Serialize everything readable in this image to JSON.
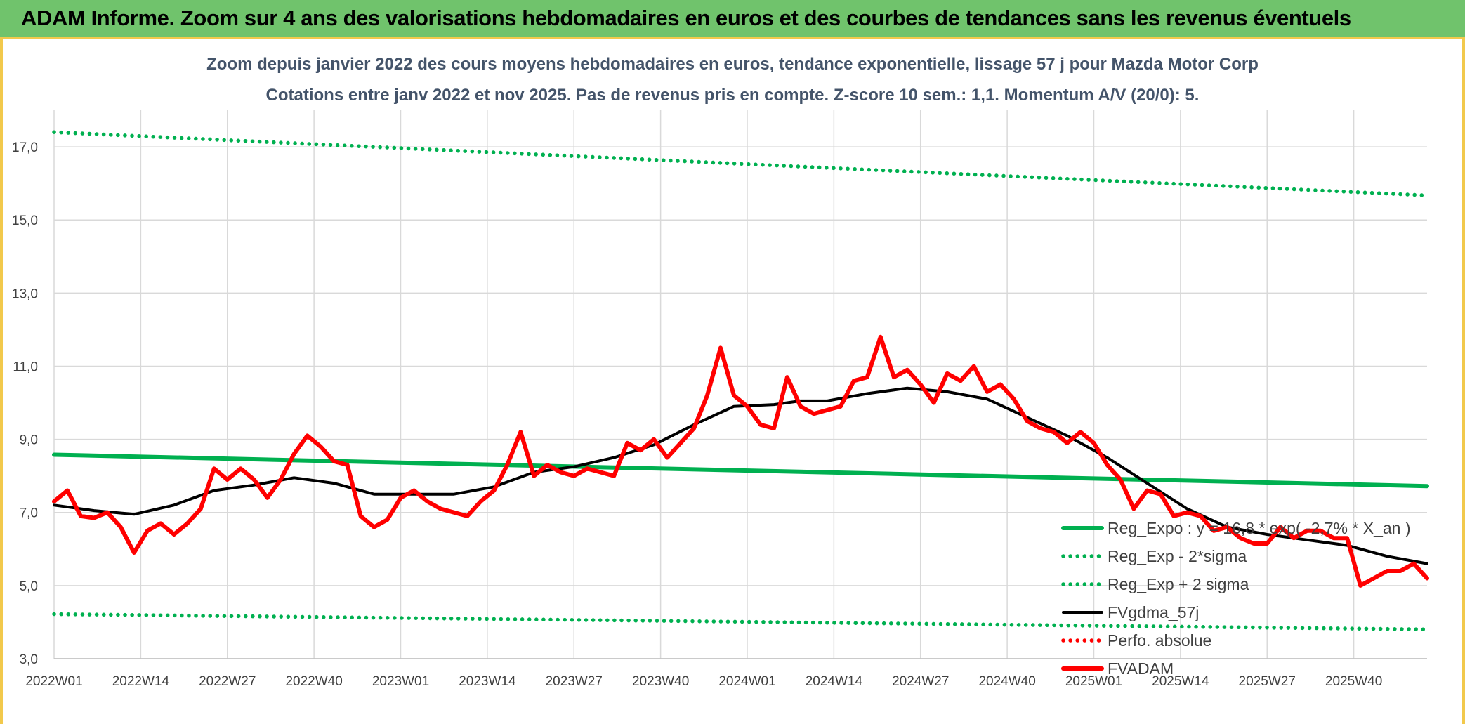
{
  "banner": {
    "title": "ADAM Informe. Zoom sur 4 ans des valorisations hebdomadaires en euros et des courbes de tendances sans les revenus éventuels"
  },
  "colors": {
    "banner_bg": "#70c36c",
    "frame_border": "#f2c94c",
    "trend": "#00b050",
    "price": "#ff0000",
    "smooth": "#000000",
    "grid": "#d9d9d9"
  },
  "chart_data": {
    "type": "line",
    "title": "Zoom depuis janvier 2022 des cours moyens hebdomadaires en euros, tendance exponentielle, lissage 57 j pour Mazda Motor Corp",
    "subtitle": "Cotations entre janv 2022 et nov 2025. Pas de revenus pris en compte. Z-score 10 sem.: 1,1. Momentum A/V (20/0): 5.",
    "ylim": [
      3,
      18
    ],
    "y_ticks": [
      "3,0",
      "5,0",
      "7,0",
      "9,0",
      "11,0",
      "13,0",
      "15,0",
      "17,0"
    ],
    "y_tick_values": [
      3,
      5,
      7,
      9,
      11,
      13,
      15,
      17
    ],
    "x_ticks": [
      "2022W01",
      "2022W14",
      "2022W27",
      "2022W40",
      "2023W01",
      "2023W14",
      "2023W27",
      "2023W40",
      "2024W01",
      "2024W14",
      "2024W27",
      "2024W40",
      "2025W01",
      "2025W14",
      "2025W27",
      "2025W40"
    ],
    "x_tick_indexes": [
      0,
      13,
      26,
      39,
      52,
      65,
      78,
      91,
      104,
      117,
      130,
      143,
      156,
      169,
      182,
      195
    ],
    "n_weeks": 207,
    "grid": true,
    "legend_position": "bottom-right",
    "series": [
      {
        "name": "Reg_Expo : y = 16,8 * exp( -2,7% *  X_an )",
        "style": "solid",
        "color": "#00b050",
        "x": [
          0,
          206
        ],
        "values": [
          8.58,
          7.72
        ]
      },
      {
        "name": "Reg_Exp - 2*sigma",
        "style": "dotted",
        "color": "#00b050",
        "x": [
          0,
          206
        ],
        "values": [
          4.22,
          3.8
        ]
      },
      {
        "name": "Reg_Exp + 2 sigma",
        "style": "dotted",
        "color": "#00b050",
        "x": [
          0,
          206
        ],
        "values": [
          17.4,
          15.67
        ]
      },
      {
        "name": "FVgdma_57j",
        "style": "solid",
        "color": "#000000",
        "x": [
          0,
          6,
          12,
          18,
          24,
          30,
          36,
          42,
          48,
          54,
          60,
          66,
          72,
          78,
          84,
          90,
          96,
          102,
          108,
          112,
          116,
          122,
          128,
          134,
          140,
          146,
          152,
          158,
          164,
          170,
          176,
          182,
          188,
          194,
          200,
          206
        ],
        "values": [
          7.2,
          7.05,
          6.95,
          7.2,
          7.6,
          7.75,
          7.95,
          7.8,
          7.5,
          7.5,
          7.5,
          7.7,
          8.1,
          8.25,
          8.5,
          8.85,
          9.4,
          9.9,
          9.95,
          10.05,
          10.05,
          10.25,
          10.4,
          10.3,
          10.1,
          9.6,
          9.1,
          8.5,
          7.8,
          7.1,
          6.6,
          6.4,
          6.25,
          6.1,
          5.8,
          5.6
        ]
      },
      {
        "name": "Perfo. absolue",
        "style": "dotted",
        "color": "#ff0000",
        "x": [],
        "values": []
      },
      {
        "name": "FVADAM",
        "style": "solid",
        "color": "#ff0000",
        "x": [
          0,
          2,
          4,
          6,
          8,
          10,
          12,
          14,
          16,
          18,
          20,
          22,
          24,
          26,
          28,
          30,
          32,
          34,
          36,
          38,
          40,
          42,
          44,
          46,
          48,
          50,
          52,
          54,
          56,
          58,
          60,
          62,
          64,
          66,
          68,
          70,
          72,
          74,
          76,
          78,
          80,
          82,
          84,
          86,
          88,
          90,
          92,
          94,
          96,
          98,
          100,
          102,
          104,
          106,
          108,
          110,
          112,
          114,
          116,
          118,
          120,
          122,
          124,
          126,
          128,
          130,
          132,
          134,
          136,
          138,
          140,
          142,
          144,
          146,
          148,
          150,
          152,
          154,
          156,
          158,
          160,
          162,
          164,
          166,
          168,
          170,
          172,
          174,
          176,
          178,
          180,
          182,
          184,
          186,
          188,
          190,
          192,
          194,
          196,
          198,
          200,
          202,
          204,
          206
        ],
        "values": [
          7.3,
          7.6,
          6.9,
          6.85,
          7.0,
          6.6,
          5.9,
          6.5,
          6.7,
          6.4,
          6.7,
          7.1,
          8.2,
          7.9,
          8.2,
          7.9,
          7.4,
          7.9,
          8.6,
          9.1,
          8.8,
          8.4,
          8.3,
          6.9,
          6.6,
          6.8,
          7.4,
          7.6,
          7.3,
          7.1,
          7.0,
          6.9,
          7.3,
          7.6,
          8.3,
          9.2,
          8.0,
          8.3,
          8.1,
          8.0,
          8.2,
          8.1,
          8.0,
          8.9,
          8.7,
          9.0,
          8.5,
          8.9,
          9.3,
          10.2,
          11.5,
          10.2,
          9.9,
          9.4,
          9.3,
          10.7,
          9.9,
          9.7,
          9.8,
          9.9,
          10.6,
          10.7,
          11.8,
          10.7,
          10.9,
          10.5,
          10.0,
          10.8,
          10.6,
          11.0,
          10.3,
          10.5,
          10.1,
          9.5,
          9.3,
          9.2,
          8.9,
          9.2,
          8.9,
          8.3,
          7.9,
          7.1,
          7.6,
          7.5,
          6.9,
          7.0,
          6.9,
          6.5,
          6.6,
          6.3,
          6.15,
          6.15,
          6.6,
          6.3,
          6.5,
          6.5,
          6.3,
          6.3,
          5.0,
          5.2,
          5.4,
          5.4,
          5.6,
          5.2
        ]
      }
    ]
  }
}
